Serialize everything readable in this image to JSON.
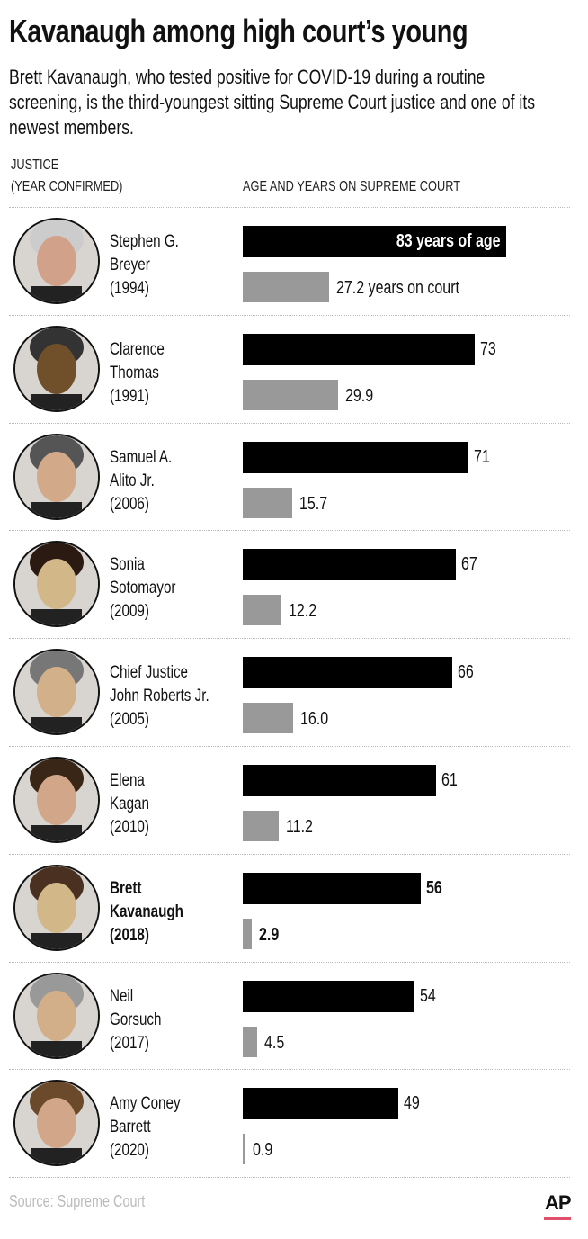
{
  "title": "Kavanaugh among high court’s young",
  "subtitle": "Brett Kavanaugh, who tested positive for COVID-19 during a routine screening, is the third-youngest sitting Supreme Court justice and one of its newest members.",
  "column_headers": {
    "justice_line1": "JUSTICE",
    "justice_line2": "(YEAR CONFIRMED)",
    "bars": "AGE AND YEARS ON SUPREME COURT"
  },
  "source": "Source: Supreme Court",
  "logo": "AP",
  "colors": {
    "age": "#000000",
    "years": "#999999",
    "logo_accent": "#e0506a"
  },
  "chart_data": {
    "type": "bar",
    "title": "Kavanaugh among high court’s young",
    "categories": [
      "Stephen G. Breyer",
      "Clarence Thomas",
      "Samuel A. Alito Jr.",
      "Sonia Sotomayor",
      "Chief Justice John Roberts Jr.",
      "Elena Kagan",
      "Brett Kavanaugh",
      "Neil Gorsuch",
      "Amy Coney Barrett"
    ],
    "series": [
      {
        "name": "Age",
        "values": [
          83,
          73,
          71,
          67,
          66,
          61,
          56,
          54,
          49
        ]
      },
      {
        "name": "Years on court",
        "values": [
          27.2,
          29.9,
          15.7,
          12.2,
          16.0,
          11.2,
          2.9,
          4.5,
          0.9
        ]
      }
    ],
    "xlim": [
      0,
      83
    ],
    "justices": [
      {
        "lines": [
          "Stephen G.",
          "Breyer",
          "(1994)"
        ],
        "age": 83,
        "age_label": "83 years of age",
        "years": 27.2,
        "years_label": "27.2 years on court",
        "highlight": false
      },
      {
        "lines": [
          "Clarence",
          "Thomas",
          "(1991)"
        ],
        "age": 73,
        "age_label": "73",
        "years": 29.9,
        "years_label": "29.9",
        "highlight": false
      },
      {
        "lines": [
          "Samuel A.",
          " Alito Jr.",
          "(2006)"
        ],
        "age": 71,
        "age_label": "71",
        "years": 15.7,
        "years_label": "15.7",
        "highlight": false
      },
      {
        "lines": [
          "Sonia",
          "Sotomayor",
          "(2009)"
        ],
        "age": 67,
        "age_label": "67",
        "years": 12.2,
        "years_label": "12.2",
        "highlight": false
      },
      {
        "lines": [
          "Chief Justice",
          "John Roberts Jr.",
          "(2005)"
        ],
        "age": 66,
        "age_label": "66",
        "years": 16.0,
        "years_label": "16.0",
        "highlight": false
      },
      {
        "lines": [
          "Elena",
          "Kagan",
          "(2010)"
        ],
        "age": 61,
        "age_label": "61",
        "years": 11.2,
        "years_label": "11.2",
        "highlight": false
      },
      {
        "lines": [
          "Brett",
          "Kavanaugh",
          "(2018)"
        ],
        "age": 56,
        "age_label": "56",
        "years": 2.9,
        "years_label": "2.9",
        "highlight": true
      },
      {
        "lines": [
          "Neil",
          "Gorsuch",
          "(2017)"
        ],
        "age": 54,
        "age_label": "54",
        "years": 4.5,
        "years_label": "4.5",
        "highlight": false
      },
      {
        "lines": [
          "Amy Coney",
          "Barrett",
          "(2020)"
        ],
        "age": 49,
        "age_label": "49",
        "years": 0.9,
        "years_label": "0.9",
        "highlight": false
      }
    ]
  }
}
